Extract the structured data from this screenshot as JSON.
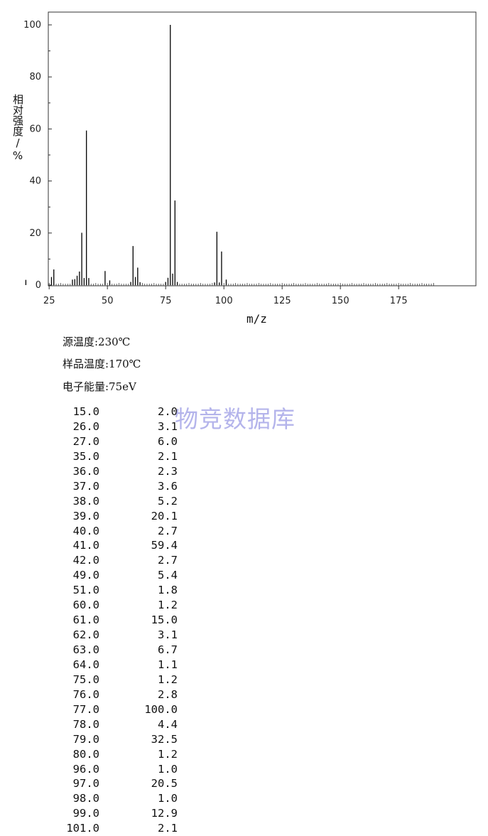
{
  "chart_data": {
    "type": "bar",
    "title": "",
    "xlabel": "m/z",
    "ylabel": "相对强度/%",
    "xlim": [
      10,
      190
    ],
    "ylim": [
      0,
      105
    ],
    "xticks": [
      25,
      50,
      75,
      100,
      125,
      150,
      175
    ],
    "yticks": [
      0,
      20,
      40,
      60,
      80,
      100
    ],
    "grid": false,
    "series": [
      {
        "x": [
          15.0,
          26.0,
          27.0,
          35.0,
          36.0,
          37.0,
          38.0,
          39.0,
          40.0,
          41.0,
          42.0,
          49.0,
          51.0,
          60.0,
          61.0,
          62.0,
          63.0,
          64.0,
          75.0,
          76.0,
          77.0,
          78.0,
          79.0,
          80.0,
          96.0,
          97.0,
          98.0,
          99.0,
          101.0
        ],
        "values": [
          2.0,
          3.1,
          6.0,
          2.1,
          2.3,
          3.6,
          5.2,
          20.1,
          2.7,
          59.4,
          2.7,
          5.4,
          1.8,
          1.2,
          15.0,
          3.1,
          6.7,
          1.1,
          1.2,
          2.8,
          100.0,
          4.4,
          32.5,
          1.2,
          1.0,
          20.5,
          1.0,
          12.9,
          2.1
        ]
      }
    ]
  },
  "conditions": {
    "source_temp": "源温度:230℃",
    "sample_temp": "样品温度:170℃",
    "electron_energy": "电子能量:75eV"
  },
  "watermark": "物竞数据库",
  "peaks": [
    {
      "mz": "15.0",
      "abundance": "2.0"
    },
    {
      "mz": "26.0",
      "abundance": "3.1"
    },
    {
      "mz": "27.0",
      "abundance": "6.0"
    },
    {
      "mz": "35.0",
      "abundance": "2.1"
    },
    {
      "mz": "36.0",
      "abundance": "2.3"
    },
    {
      "mz": "37.0",
      "abundance": "3.6"
    },
    {
      "mz": "38.0",
      "abundance": "5.2"
    },
    {
      "mz": "39.0",
      "abundance": "20.1"
    },
    {
      "mz": "40.0",
      "abundance": "2.7"
    },
    {
      "mz": "41.0",
      "abundance": "59.4"
    },
    {
      "mz": "42.0",
      "abundance": "2.7"
    },
    {
      "mz": "49.0",
      "abundance": "5.4"
    },
    {
      "mz": "51.0",
      "abundance": "1.8"
    },
    {
      "mz": "60.0",
      "abundance": "1.2"
    },
    {
      "mz": "61.0",
      "abundance": "15.0"
    },
    {
      "mz": "62.0",
      "abundance": "3.1"
    },
    {
      "mz": "63.0",
      "abundance": "6.7"
    },
    {
      "mz": "64.0",
      "abundance": "1.1"
    },
    {
      "mz": "75.0",
      "abundance": "1.2"
    },
    {
      "mz": "76.0",
      "abundance": "2.8"
    },
    {
      "mz": "77.0",
      "abundance": "100.0"
    },
    {
      "mz": "78.0",
      "abundance": "4.4"
    },
    {
      "mz": "79.0",
      "abundance": "32.5"
    },
    {
      "mz": "80.0",
      "abundance": "1.2"
    },
    {
      "mz": "96.0",
      "abundance": "1.0"
    },
    {
      "mz": "97.0",
      "abundance": "20.5"
    },
    {
      "mz": "98.0",
      "abundance": "1.0"
    },
    {
      "mz": "99.0",
      "abundance": "12.9"
    },
    {
      "mz": "101.0",
      "abundance": "2.1"
    }
  ]
}
